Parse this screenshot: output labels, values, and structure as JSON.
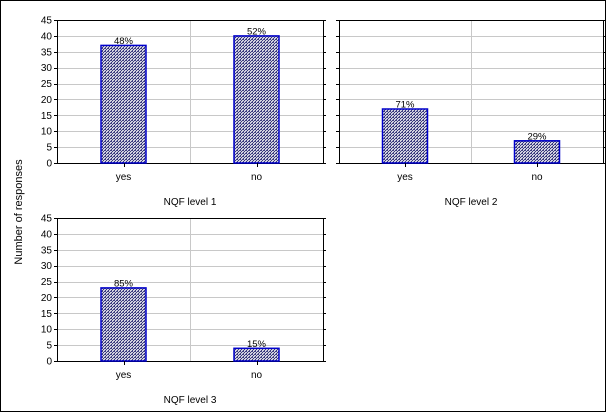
{
  "figure": {
    "ylabel": "Number of responses"
  },
  "chart_data": [
    {
      "type": "bar",
      "xlabel": "NQF level 1",
      "categories": [
        "yes",
        "no"
      ],
      "values": [
        37,
        40
      ],
      "data_labels": [
        "48%",
        "52%"
      ],
      "ylim": [
        0,
        45
      ],
      "yticks": [
        "0",
        "5",
        "10",
        "15",
        "20",
        "25",
        "30",
        "35",
        "40",
        "45"
      ],
      "grid": true,
      "colors": {
        "bar_fill": "#ffffff",
        "bar_edge": "#0000cc",
        "hatch": "#1a1a66"
      }
    },
    {
      "type": "bar",
      "xlabel": "NQF level 2",
      "categories": [
        "yes",
        "no"
      ],
      "values": [
        17,
        7
      ],
      "data_labels": [
        "71%",
        "29%"
      ],
      "ylim": [
        0,
        45
      ],
      "grid": true,
      "colors": {
        "bar_fill": "#ffffff",
        "bar_edge": "#0000cc",
        "hatch": "#1a1a66"
      }
    },
    {
      "type": "bar",
      "xlabel": "NQF level 3",
      "categories": [
        "yes",
        "no"
      ],
      "values": [
        23,
        4
      ],
      "data_labels": [
        "85%",
        "15%"
      ],
      "ylim": [
        0,
        45
      ],
      "yticks": [
        "0",
        "5",
        "10",
        "15",
        "20",
        "25",
        "30",
        "35",
        "40",
        "45"
      ],
      "grid": true,
      "colors": {
        "bar_fill": "#ffffff",
        "bar_edge": "#0000cc",
        "hatch": "#1a1a66"
      }
    }
  ]
}
